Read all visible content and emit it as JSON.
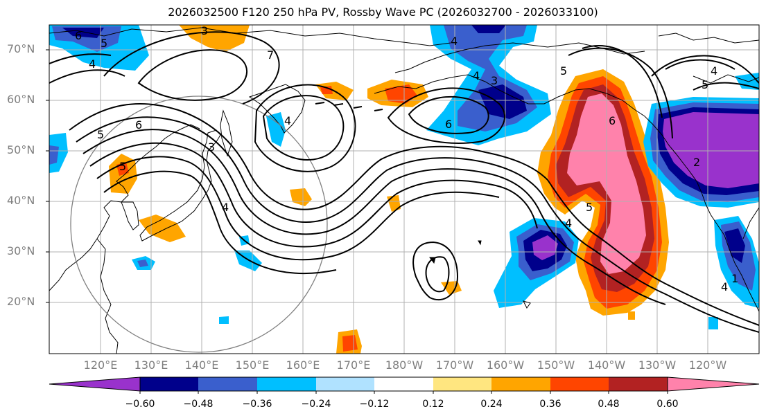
{
  "title": "2026032500 F120 250 hPa PV, Rossby Wave PC (2026032700 - 2026033100)",
  "lat_labels": [
    "70°N",
    "60°N",
    "50°N",
    "40°N",
    "30°N",
    "20°N"
  ],
  "lon_labels": [
    "120°E",
    "130°E",
    "140°E",
    "150°E",
    "160°E",
    "170°E",
    "180°W",
    "170°W",
    "160°W",
    "150°W",
    "140°W",
    "130°W",
    "120°W"
  ],
  "colorbar": {
    "ticks": [
      "−0.60",
      "−0.48",
      "−0.36",
      "−0.24",
      "−0.12",
      "0.12",
      "0.24",
      "0.36",
      "0.48",
      "0.60"
    ],
    "colors": [
      "#9932cc",
      "#00008b",
      "#3a5fcd",
      "#00bfff",
      "#b0e2ff",
      "#ffffff",
      "#ffe680",
      "#ffa500",
      "#ff4500",
      "#b22222",
      "#ff82ab"
    ]
  },
  "contour_labels": [
    "6",
    "5",
    "4",
    "3",
    "7",
    "6",
    "4",
    "5",
    "5",
    "4",
    "3",
    "4",
    "6",
    "5",
    "6",
    "5",
    "4",
    "2",
    "5",
    "4",
    "3",
    "1",
    "4",
    "4"
  ]
}
